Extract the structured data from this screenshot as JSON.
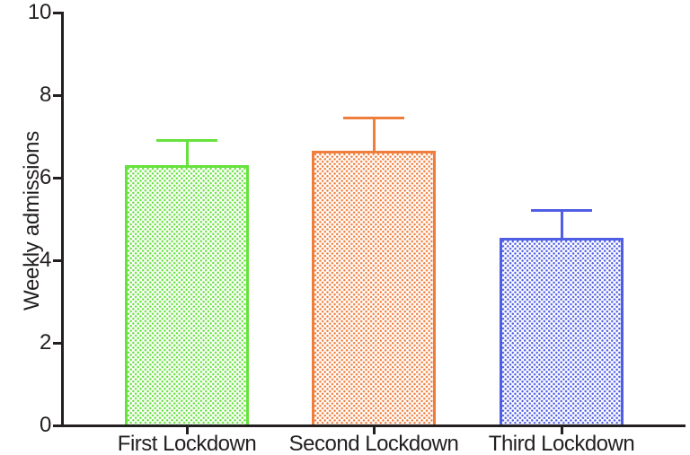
{
  "chart_data": {
    "type": "bar",
    "title": "",
    "xlabel": "",
    "ylabel": "Weekly admissions",
    "categories": [
      "First Lockdown",
      "Second Lockdown",
      "Third Lockdown"
    ],
    "values": [
      6.3,
      6.65,
      4.55
    ],
    "errors_plus": [
      0.6,
      0.8,
      0.65
    ],
    "ylim": [
      0,
      10
    ],
    "yticks": [
      0,
      2,
      4,
      6,
      8,
      10
    ],
    "grid": false,
    "legend": "none",
    "bar_fill_style": "dotted",
    "bar_colors": [
      "#65e23c",
      "#ef7e3c",
      "#4f5ee3"
    ],
    "axis_color": "#231f20",
    "background_color": "#ffffff"
  }
}
